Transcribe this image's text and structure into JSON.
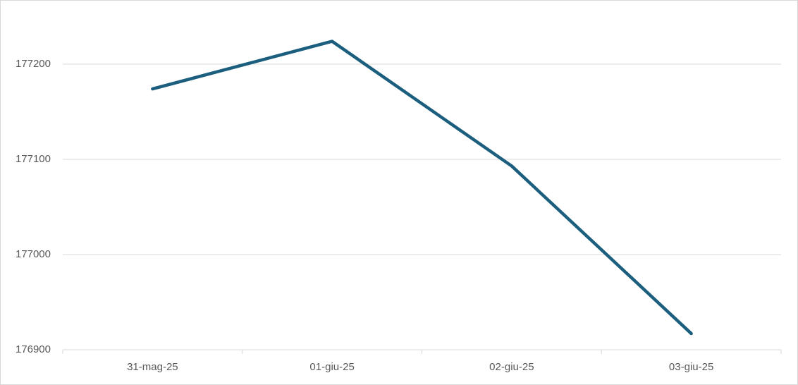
{
  "chart_data": {
    "type": "line",
    "categories": [
      "31-mag-25",
      "01-giu-25",
      "02-giu-25",
      "03-giu-25"
    ],
    "values": [
      177174,
      177224,
      177093,
      176917
    ],
    "color": "#1b5e7e",
    "ylim": [
      176900,
      177250
    ],
    "yticks": [
      176900,
      177000,
      177100,
      177200
    ],
    "grid": true
  }
}
